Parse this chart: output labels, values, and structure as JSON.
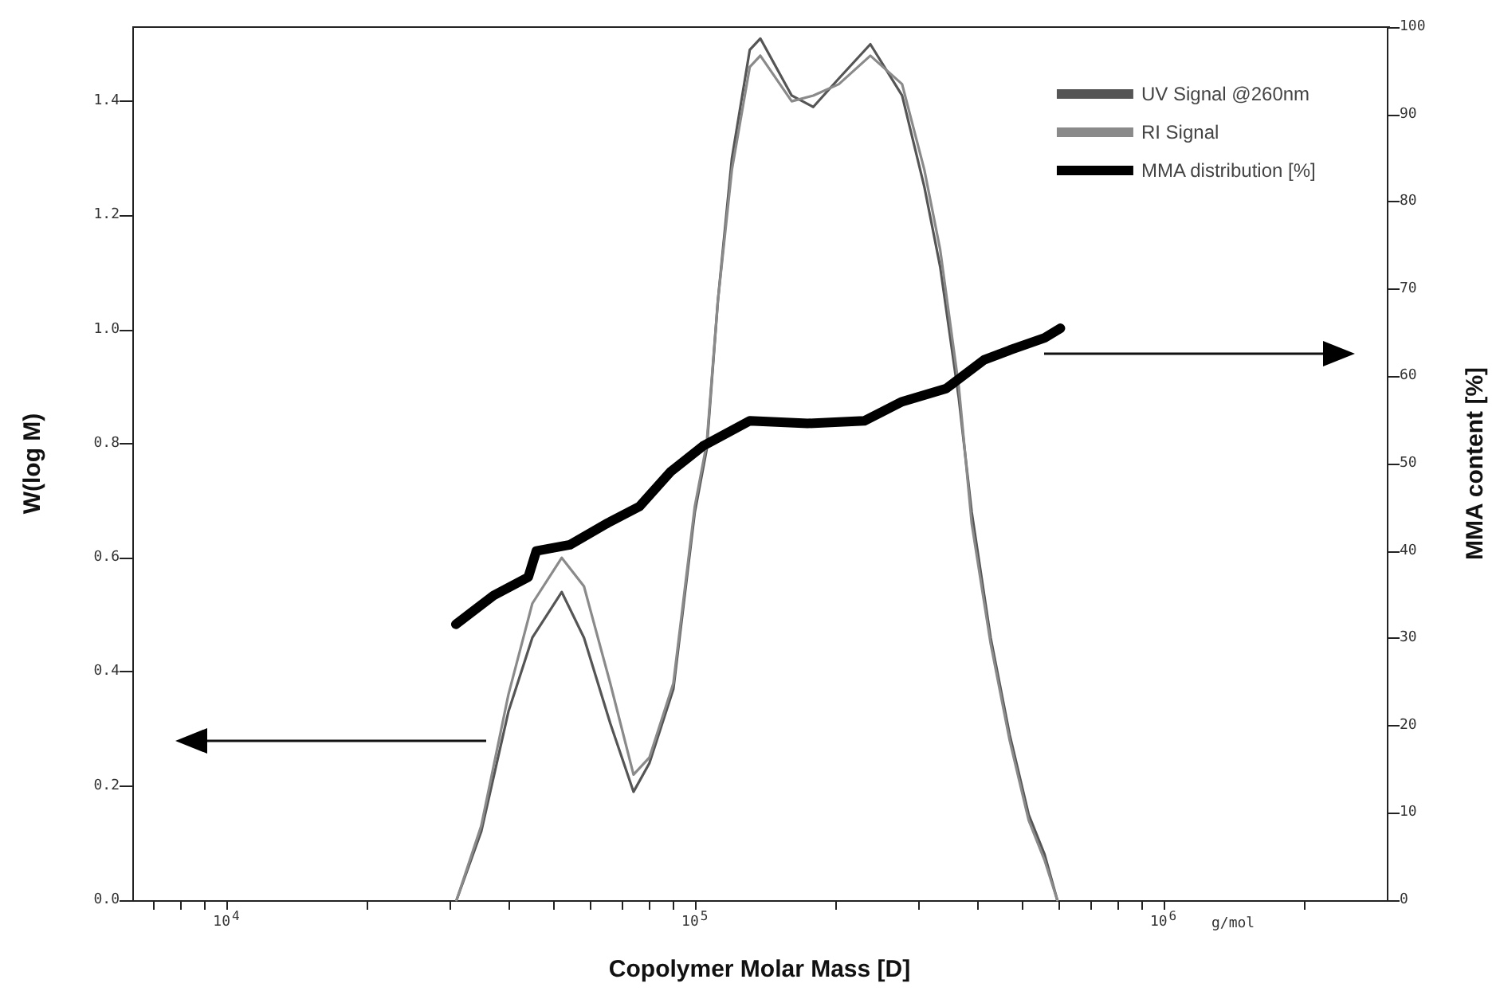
{
  "chart_data": {
    "type": "line",
    "xlabel": "Copolymer Molar Mass [D]",
    "ylabel": "W(log M)",
    "y2label": "MMA content [%]",
    "log": "x",
    "xlim": [
      6300,
      3000000
    ],
    "xticks": [
      {
        "value": 7000,
        "label": null
      },
      {
        "value": 8000,
        "label": null
      },
      {
        "value": 9000,
        "label": null
      },
      {
        "value": 10000,
        "label": "10$^{4}$"
      },
      {
        "value": 20000,
        "label": null
      },
      {
        "value": 30000,
        "label": null
      },
      {
        "value": 40000,
        "label": null
      },
      {
        "value": 50000,
        "label": null
      },
      {
        "value": 60000,
        "label": null
      },
      {
        "value": 70000,
        "label": null
      },
      {
        "value": 80000,
        "label": null
      },
      {
        "value": 90000,
        "label": null
      },
      {
        "value": 100000,
        "label": "10$^{5}$"
      },
      {
        "value": 200000,
        "label": null
      },
      {
        "value": 300000,
        "label": null
      },
      {
        "value": 400000,
        "label": null
      },
      {
        "value": 500000,
        "label": null
      },
      {
        "value": 600000,
        "label": null
      },
      {
        "value": 700000,
        "label": null
      },
      {
        "value": 800000,
        "label": null
      },
      {
        "value": 900000,
        "label": null
      },
      {
        "value": 1000000,
        "label": "10$^{6}$"
      },
      {
        "value": 2000000,
        "label": null
      }
    ],
    "ylim": [
      0,
      1.53
    ],
    "yticks": [
      {
        "value": 0,
        "label": "0.0"
      },
      {
        "value": 0.2,
        "label": "0.2"
      },
      {
        "value": 0.4,
        "label": "0.4"
      },
      {
        "value": 0.6,
        "label": "0.6"
      },
      {
        "value": 0.8,
        "label": "0.8"
      },
      {
        "value": 1,
        "label": "1.0"
      },
      {
        "value": 1.2,
        "label": "1.2"
      },
      {
        "value": 1.4,
        "label": "1.4"
      }
    ],
    "y2lim": [
      0,
      100
    ],
    "y2ticks": [
      0,
      10,
      20,
      30,
      40,
      50,
      60,
      70,
      80,
      90,
      100
    ],
    "grid": false,
    "legend": "top right",
    "marker": "none",
    "line_style": "solid",
    "annotations": [
      "g/mol"
    ],
    "series": [
      {
        "name": "UV Signal @260nm",
        "color": "#555555",
        "x": [
          31000,
          35000,
          40000,
          45000,
          52000,
          58000,
          66000,
          74000,
          80000,
          90000,
          100000,
          106000,
          112000,
          120000,
          131000,
          138000,
          161000,
          179000,
          203000,
          237000,
          277000,
          309000,
          334000,
          366000,
          390000,
          428000,
          470000,
          516000,
          558000,
          594000
        ],
        "values": [
          0,
          0.12,
          0.33,
          0.46,
          0.54,
          0.46,
          0.31,
          0.19,
          0.24,
          0.37,
          0.68,
          0.79,
          1.05,
          1.3,
          1.49,
          1.51,
          1.41,
          1.39,
          1.44,
          1.5,
          1.41,
          1.25,
          1.11,
          0.88,
          0.68,
          0.46,
          0.29,
          0.15,
          0.08,
          0
        ]
      },
      {
        "name": "RI Signal",
        "color": "#8a8a8a",
        "x": [
          31000,
          35000,
          40000,
          45000,
          52000,
          58000,
          66000,
          74000,
          80000,
          90000,
          100000,
          106000,
          112000,
          120000,
          131000,
          138000,
          161000,
          179000,
          203000,
          237000,
          277000,
          309000,
          334000,
          366000,
          390000,
          428000,
          470000,
          516000,
          558000,
          594000
        ],
        "values": [
          0,
          0.13,
          0.36,
          0.52,
          0.6,
          0.55,
          0.38,
          0.22,
          0.25,
          0.38,
          0.69,
          0.8,
          1.05,
          1.28,
          1.46,
          1.48,
          1.4,
          1.41,
          1.43,
          1.48,
          1.43,
          1.28,
          1.14,
          0.9,
          0.66,
          0.45,
          0.28,
          0.14,
          0.07,
          0
        ]
      },
      {
        "name": "MMA distribution [%]",
        "color": "#000000",
        "axis": "y2",
        "x": [
          30900,
          37200,
          44100,
          45900,
          54100,
          65200,
          76200,
          88900,
          104000,
          131000,
          174000,
          230000,
          277000,
          344000,
          415000,
          470000,
          558000,
          603000
        ],
        "values": [
          31.6,
          34.9,
          37.0,
          40.0,
          40.7,
          43.2,
          45.1,
          49.1,
          52.0,
          54.9,
          54.6,
          54.9,
          57.1,
          58.6,
          61.9,
          63.0,
          64.4,
          65.5
        ]
      }
    ]
  }
}
